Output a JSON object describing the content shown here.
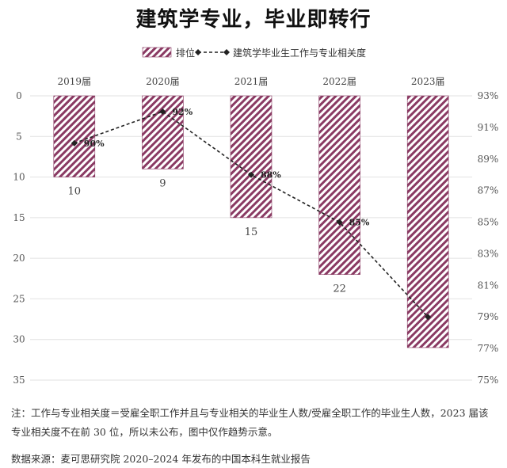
{
  "title": "建筑学专业，毕业即转行",
  "note": "注：工作与专业相关度＝受雇全职工作并且与专业相关的毕业生人数/受雇全职工作的毕业生人数，2023 届该专业相关度不在前 30 位，所以未公布，图中仅作趋势示意。",
  "source": "数据来源：麦可思研究院 2020–2024 年发布的中国本科生就业报告",
  "colors": {
    "bar": "#8a3a63",
    "line": "#222222"
  },
  "chart_data": {
    "type": "bar",
    "categories": [
      "2019届",
      "2020届",
      "2021届",
      "2022届",
      "2023届"
    ],
    "series": [
      {
        "name": "排位",
        "type": "bar",
        "axis": "left",
        "values": [
          10,
          9,
          15,
          22,
          31
        ],
        "labels": [
          "10",
          "9",
          "15",
          "22",
          ""
        ]
      },
      {
        "name": "建筑学毕业生工作与专业相关度",
        "type": "line",
        "axis": "right",
        "values": [
          90,
          92,
          88,
          85,
          79
        ],
        "labels": [
          "90%",
          "92%",
          "88%",
          "85%",
          ""
        ]
      }
    ],
    "left_axis": {
      "min": 0,
      "max": 35,
      "reversed": true,
      "ticks": [
        "0",
        "5",
        "10",
        "15",
        "20",
        "25",
        "30",
        "35"
      ]
    },
    "right_axis": {
      "min": 75,
      "max": 93,
      "ticks": [
        "93%",
        "91%",
        "89%",
        "87%",
        "85%",
        "83%",
        "81%",
        "79%",
        "77%",
        "75%"
      ]
    },
    "grid": true,
    "legend": "top-center"
  }
}
